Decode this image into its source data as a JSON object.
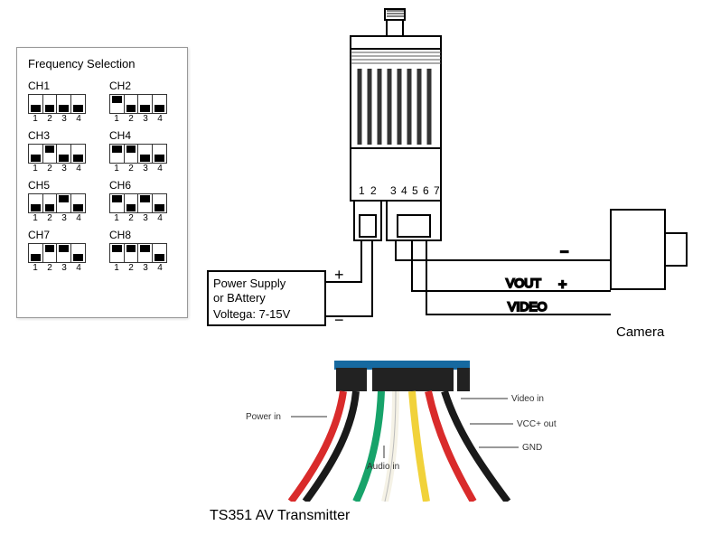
{
  "title": "TS351 AV Transmitter",
  "freq_panel": {
    "title": "Frequency Selection",
    "dip_numbers": [
      "1",
      "2",
      "3",
      "4"
    ],
    "channels": [
      {
        "label": "CH1",
        "sw": [
          0,
          0,
          0,
          0
        ]
      },
      {
        "label": "CH2",
        "sw": [
          1,
          0,
          0,
          0
        ]
      },
      {
        "label": "CH3",
        "sw": [
          0,
          1,
          0,
          0
        ]
      },
      {
        "label": "CH4",
        "sw": [
          1,
          1,
          0,
          0
        ]
      },
      {
        "label": "CH5",
        "sw": [
          0,
          0,
          1,
          0
        ]
      },
      {
        "label": "CH6",
        "sw": [
          1,
          0,
          1,
          0
        ]
      },
      {
        "label": "CH7",
        "sw": [
          0,
          1,
          1,
          0
        ]
      },
      {
        "label": "CH8",
        "sw": [
          1,
          1,
          1,
          0
        ]
      }
    ]
  },
  "schematic": {
    "power_box": {
      "line1": "Power Supply",
      "line2": "or BAttery",
      "line3": "Voltega: 7-15V",
      "plus": "+",
      "minus": "−"
    },
    "transmitter": {
      "pin_labels": [
        "1",
        "2",
        "3",
        "4",
        "5",
        "6",
        "7"
      ]
    },
    "signals": {
      "vout": "VOUT",
      "vout_sign": "+",
      "video": "VIDEO",
      "minus": "−"
    },
    "camera_label": "Camera",
    "stroke": "#000000",
    "stroke_width": 2,
    "hatch_color": "#555555",
    "background": "#ffffff"
  },
  "photo": {
    "labels": {
      "power_in": "Power in",
      "audio_in": "Audio in",
      "video_in": "Video in",
      "vcc_out": "VCC+ out",
      "gnd": "GND"
    },
    "wire_colors": {
      "power_in_pair": [
        "#d92b2b",
        "#1a1a1a"
      ],
      "audio_in": "#17a36a",
      "spare": "#f5f2e6",
      "video_in": "#f1d23a",
      "vcc_out": "#d92b2b",
      "gnd": "#1a1a1a"
    },
    "connector_color": "#222222",
    "board_color": "#1669a0",
    "label_font_size": 10,
    "label_color": "#333333"
  }
}
